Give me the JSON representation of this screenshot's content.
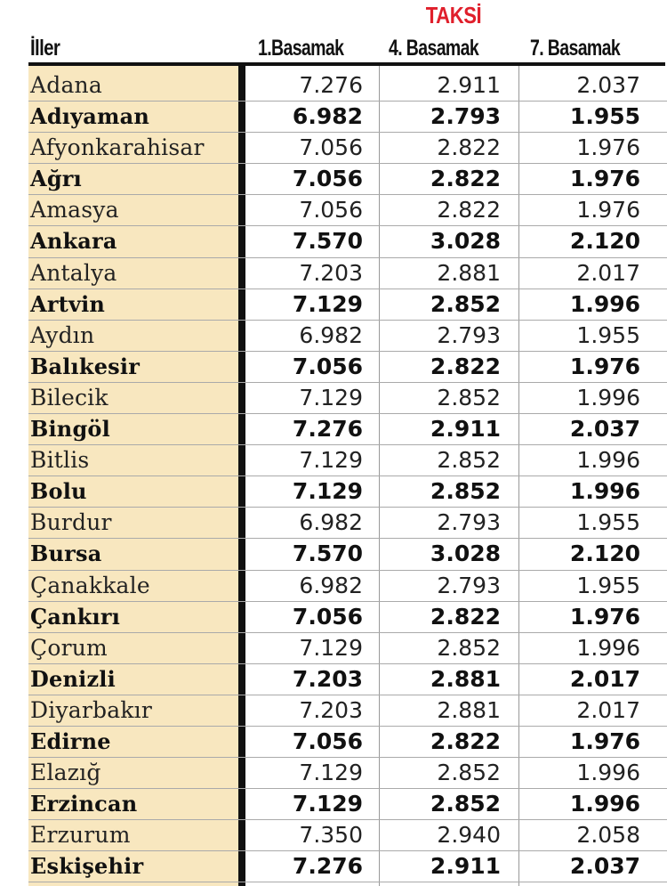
{
  "title": "TAKSİ",
  "headers": {
    "city": "İller",
    "col1": "1.Basamak",
    "col4": "4. Basamak",
    "col7": "7. Basamak"
  },
  "rows": [
    {
      "city": "Adana",
      "b1": "7.276",
      "b4": "2.911",
      "b7": "2.037",
      "bold": false
    },
    {
      "city": "Adıyaman",
      "b1": "6.982",
      "b4": "2.793",
      "b7": "1.955",
      "bold": true
    },
    {
      "city": "Afyonkarahisar",
      "b1": "7.056",
      "b4": "2.822",
      "b7": "1.976",
      "bold": false
    },
    {
      "city": "Ağrı",
      "b1": "7.056",
      "b4": "2.822",
      "b7": "1.976",
      "bold": true
    },
    {
      "city": "Amasya",
      "b1": "7.056",
      "b4": "2.822",
      "b7": "1.976",
      "bold": false
    },
    {
      "city": "Ankara",
      "b1": "7.570",
      "b4": "3.028",
      "b7": "2.120",
      "bold": true
    },
    {
      "city": "Antalya",
      "b1": "7.203",
      "b4": "2.881",
      "b7": "2.017",
      "bold": false
    },
    {
      "city": "Artvin",
      "b1": "7.129",
      "b4": "2.852",
      "b7": "1.996",
      "bold": true
    },
    {
      "city": "Aydın",
      "b1": "6.982",
      "b4": "2.793",
      "b7": "1.955",
      "bold": false
    },
    {
      "city": "Balıkesir",
      "b1": "7.056",
      "b4": "2.822",
      "b7": "1.976",
      "bold": true
    },
    {
      "city": "Bilecik",
      "b1": "7.129",
      "b4": "2.852",
      "b7": "1.996",
      "bold": false
    },
    {
      "city": "Bingöl",
      "b1": "7.276",
      "b4": "2.911",
      "b7": "2.037",
      "bold": true
    },
    {
      "city": "Bitlis",
      "b1": "7.129",
      "b4": "2.852",
      "b7": "1.996",
      "bold": false
    },
    {
      "city": "Bolu",
      "b1": "7.129",
      "b4": "2.852",
      "b7": "1.996",
      "bold": true
    },
    {
      "city": "Burdur",
      "b1": "6.982",
      "b4": "2.793",
      "b7": "1.955",
      "bold": false
    },
    {
      "city": "Bursa",
      "b1": "7.570",
      "b4": "3.028",
      "b7": "2.120",
      "bold": true
    },
    {
      "city": "Çanakkale",
      "b1": "6.982",
      "b4": "2.793",
      "b7": "1.955",
      "bold": false
    },
    {
      "city": "Çankırı",
      "b1": "7.056",
      "b4": "2.822",
      "b7": "1.976",
      "bold": true
    },
    {
      "city": "Çorum",
      "b1": "7.129",
      "b4": "2.852",
      "b7": "1.996",
      "bold": false
    },
    {
      "city": "Denizli",
      "b1": "7.203",
      "b4": "2.881",
      "b7": "2.017",
      "bold": true
    },
    {
      "city": "Diyarbakır",
      "b1": "7.203",
      "b4": "2.881",
      "b7": "2.017",
      "bold": false
    },
    {
      "city": "Edirne",
      "b1": "7.056",
      "b4": "2.822",
      "b7": "1.976",
      "bold": true
    },
    {
      "city": "Elazığ",
      "b1": "7.129",
      "b4": "2.852",
      "b7": "1.996",
      "bold": false
    },
    {
      "city": "Erzincan",
      "b1": "7.129",
      "b4": "2.852",
      "b7": "1.996",
      "bold": true
    },
    {
      "city": "Erzurum",
      "b1": "7.350",
      "b4": "2.940",
      "b7": "2.058",
      "bold": false
    },
    {
      "city": "Eskişehir",
      "b1": "7.276",
      "b4": "2.911",
      "b7": "2.037",
      "bold": true
    }
  ],
  "colors": {
    "title": "#e01f2b",
    "name_column_bg": "#f8e7bf",
    "rule": "#111111"
  }
}
